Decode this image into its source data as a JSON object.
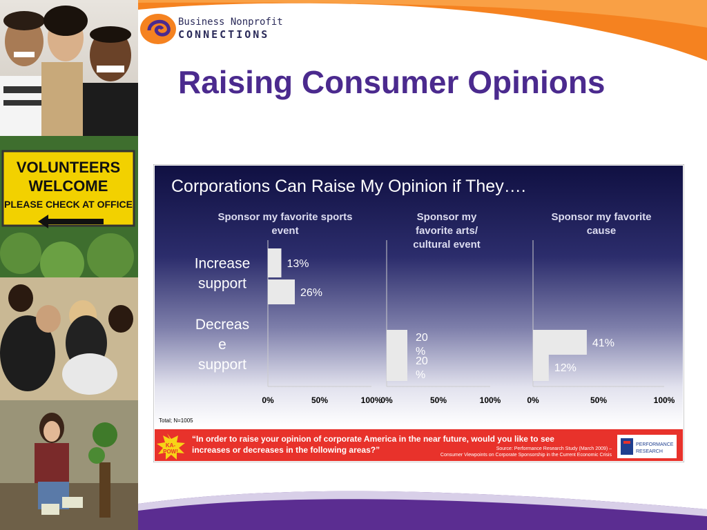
{
  "brand": {
    "line1": "Business Nonprofit",
    "line2": "CONNECTIONS"
  },
  "slide_title": "Raising Consumer Opinions",
  "photos": {
    "sign_line1": "VOLUNTEERS",
    "sign_line2": "WELCOME",
    "sign_line3": "PLEASE CHECK AT OFFICE"
  },
  "colors": {
    "title_purple": "#4b2a8e",
    "orange_swoosh": "#f58220",
    "chart_bg_top": "#111144",
    "chart_bg_bottom": "#ffffff",
    "banner_red": "#e8322b",
    "bar_fill": "#e9e9e9"
  },
  "chart_data": {
    "type": "bar",
    "orientation": "horizontal",
    "title": "Corporations Can Raise My Opinion if They….",
    "categories": [
      "Increase support",
      "Decrease support"
    ],
    "category_labels": [
      [
        "Increase",
        "support"
      ],
      [
        "Decreas",
        "e",
        "support"
      ]
    ],
    "panels": [
      {
        "title": [
          "Sponsor my favorite sports",
          "event"
        ],
        "values": [
          13,
          26
        ],
        "labels": [
          "13%",
          "26%"
        ],
        "ticks": [
          "0%",
          "50%",
          "100%"
        ]
      },
      {
        "title": [
          "Sponsor my",
          "favorite arts/",
          "cultural event"
        ],
        "values": [
          20,
          20
        ],
        "labels": [
          [
            "20",
            "%"
          ],
          [
            "20",
            "%"
          ]
        ],
        "ticks": [
          "0%",
          "50%",
          "100%"
        ]
      },
      {
        "title": [
          "Sponsor my favorite",
          "cause"
        ],
        "values": [
          41,
          12
        ],
        "labels": [
          "41%",
          "12%"
        ],
        "ticks": [
          "0%",
          "50%",
          "100%"
        ]
      }
    ],
    "xlim": [
      0,
      100
    ],
    "grid": false,
    "note": "Total; N=1005",
    "question": [
      "“In order to raise your opinion of corporate America in the near future, would you like to see",
      "increases or decreases in the following areas?”"
    ],
    "source": [
      "Source: Performance Research Study (March 2009) –",
      "Consumer Viewpoints on Corporate Sponsorship in the Current Economic Crisis"
    ],
    "burst_text": [
      "KA-",
      "POW!"
    ],
    "logo_text": [
      "PERFORMANCE",
      "RESEARCH"
    ]
  }
}
